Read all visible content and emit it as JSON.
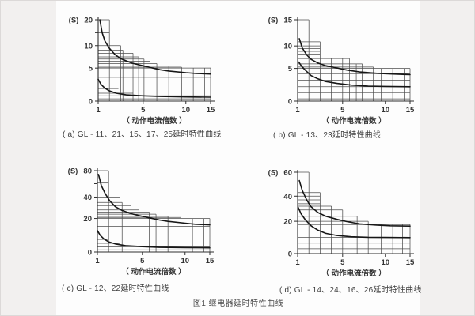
{
  "page": {
    "caption": "图1  继电器延时特性曲线",
    "colors": {
      "grid": "#4f4f4f",
      "axis": "#2f2f2f",
      "curve": "#161616",
      "text": "#333333",
      "panel": "#fdfdfd"
    }
  },
  "chart_data": [
    {
      "key": "a",
      "type": "line",
      "title": "( a) GL - 11、21、15、17、25延时特性曲线",
      "ylabel": "(S)",
      "xlabel": "（ 动作电流倍数 ）",
      "xlim": [
        1,
        15
      ],
      "ylim": [
        0,
        20
      ],
      "x_ticks": {
        "values": [
          1,
          5,
          10,
          15
        ],
        "labels": [
          "1",
          "5",
          "10",
          "15"
        ],
        "pos": [
          0,
          0.4,
          0.78,
          1
        ]
      },
      "y_ticks": {
        "values": [
          0,
          5,
          10,
          15,
          20
        ],
        "labels": [
          "0",
          "5",
          "10",
          "",
          "20"
        ],
        "pos": [
          0,
          0.406,
          0.682,
          0.841,
          1
        ]
      },
      "grid_hlines": [
        [
          20,
          2
        ],
        [
          15,
          2
        ],
        [
          10,
          3
        ],
        [
          9,
          3.2
        ],
        [
          8.3,
          4.1
        ],
        [
          7.5,
          4.6
        ],
        [
          7,
          5.1
        ],
        [
          6.5,
          5.8
        ],
        [
          6,
          6.6
        ],
        [
          5.5,
          8
        ],
        [
          5.2,
          9.5
        ],
        [
          5,
          15
        ],
        [
          3.6,
          15
        ],
        [
          1.9,
          2.8
        ],
        [
          1.2,
          4.1
        ],
        [
          0.8,
          15
        ],
        [
          0.35,
          15
        ]
      ],
      "grid_vlines": [
        [
          2,
          20
        ],
        [
          3,
          10
        ],
        [
          3.2,
          9
        ],
        [
          4.1,
          8.3
        ],
        [
          4.6,
          7.5
        ],
        [
          5.1,
          7
        ],
        [
          5.8,
          6.5
        ],
        [
          6.6,
          6
        ],
        [
          8,
          5.5
        ],
        [
          9.5,
          5.2
        ],
        [
          11.5,
          5
        ],
        [
          13.8,
          5
        ],
        [
          15,
          5
        ]
      ],
      "series": [
        {
          "name": "upper-limit-curve",
          "points": [
            [
              1.15,
              20
            ],
            [
              1.35,
              15
            ],
            [
              1.6,
              11.8
            ],
            [
              2,
              9.4
            ],
            [
              2.5,
              8
            ],
            [
              3,
              7.1
            ],
            [
              4,
              6.1
            ],
            [
              5,
              5.5
            ],
            [
              6,
              5.05
            ],
            [
              7,
              4.75
            ],
            [
              8,
              4.55
            ],
            [
              10,
              4.3
            ],
            [
              12,
              4.2
            ],
            [
              15,
              4.1
            ]
          ]
        },
        {
          "name": "lower-limit-curve",
          "points": [
            [
              1,
              3.3
            ],
            [
              1.25,
              2.55
            ],
            [
              1.6,
              1.95
            ],
            [
              2,
              1.55
            ],
            [
              2.6,
              1.2
            ],
            [
              3.5,
              0.95
            ],
            [
              5,
              0.8
            ],
            [
              7,
              0.7
            ],
            [
              10,
              0.63
            ],
            [
              15,
              0.6
            ]
          ]
        }
      ]
    },
    {
      "key": "b",
      "type": "line",
      "title": "( b) GL - 13、23延时特性曲线",
      "ylabel": "(S)",
      "xlabel": "（ 动作电流倍数 ）",
      "xlim": [
        1,
        15
      ],
      "ylim": [
        0,
        15
      ],
      "x_ticks": {
        "values": [
          1,
          5,
          10,
          15
        ],
        "labels": [
          "1",
          "5",
          "10",
          "15"
        ],
        "pos": [
          0,
          0.4,
          0.78,
          1
        ]
      },
      "y_ticks": {
        "values": [
          0,
          5,
          10,
          15
        ],
        "labels": [
          "0",
          "5",
          "10",
          "15"
        ],
        "pos": [
          0,
          0.402,
          0.678,
          1
        ]
      },
      "grid_hlines": [
        [
          15,
          2
        ],
        [
          10.8,
          3
        ],
        [
          10,
          3
        ],
        [
          9.4,
          3
        ],
        [
          8.8,
          3
        ],
        [
          8.2,
          3
        ],
        [
          7.2,
          5.8
        ],
        [
          6,
          7.3
        ],
        [
          5.3,
          8.6
        ],
        [
          5,
          15
        ],
        [
          4.2,
          15
        ],
        [
          3.2,
          15
        ],
        [
          2.2,
          15
        ],
        [
          1.3,
          15
        ],
        [
          0.35,
          15
        ]
      ],
      "grid_vlines": [
        [
          2,
          15
        ],
        [
          3,
          10.8
        ],
        [
          4,
          7.2
        ],
        [
          5,
          7.2
        ],
        [
          5.8,
          7.2
        ],
        [
          6.6,
          6
        ],
        [
          7.3,
          6
        ],
        [
          8.6,
          5.3
        ],
        [
          9.5,
          5
        ],
        [
          11.5,
          5
        ],
        [
          13.8,
          5
        ],
        [
          15,
          5
        ]
      ],
      "series": [
        {
          "name": "upper-limit-curve",
          "points": [
            [
              1.15,
              11.4
            ],
            [
              1.4,
              9.6
            ],
            [
              1.8,
              8
            ],
            [
              2.2,
              7
            ],
            [
              2.8,
              6.2
            ],
            [
              3.5,
              5.6
            ],
            [
              4.5,
              5.1
            ],
            [
              5.5,
              4.75
            ],
            [
              7,
              4.45
            ],
            [
              9,
              4.25
            ],
            [
              11,
              4.15
            ],
            [
              15,
              4.05
            ]
          ]
        },
        {
          "name": "lower-limit-curve",
          "points": [
            [
              1.1,
              6.4
            ],
            [
              1.35,
              5.5
            ],
            [
              1.7,
              4.7
            ],
            [
              2.2,
              3.9
            ],
            [
              2.8,
              3.4
            ],
            [
              3.5,
              3
            ],
            [
              4.5,
              2.7
            ],
            [
              6,
              2.45
            ],
            [
              8,
              2.3
            ],
            [
              10,
              2.25
            ],
            [
              15,
              2.2
            ]
          ]
        }
      ]
    },
    {
      "key": "c",
      "type": "line",
      "title": "( c) GL - 12、22延时特性曲线",
      "ylabel": "(S)",
      "xlabel": "（ 动作电流倍数 ）",
      "xlim": [
        1,
        15
      ],
      "ylim": [
        0,
        80
      ],
      "x_ticks": {
        "values": [
          1,
          5,
          10,
          15
        ],
        "labels": [
          "1",
          "5",
          "10",
          "15"
        ],
        "pos": [
          0,
          0.4,
          0.78,
          1
        ]
      },
      "y_ticks": {
        "values": [
          0,
          20,
          40,
          60,
          80
        ],
        "labels": [
          "0",
          "20",
          "40",
          "",
          "80"
        ],
        "pos": [
          0,
          0.412,
          0.675,
          0.84,
          1
        ]
      },
      "grid_hlines": [
        [
          80,
          2
        ],
        [
          61,
          2
        ],
        [
          40,
          3
        ],
        [
          35,
          3.2
        ],
        [
          32,
          4
        ],
        [
          28,
          4.7
        ],
        [
          26,
          5.8
        ],
        [
          24,
          6.6
        ],
        [
          22,
          8
        ],
        [
          21,
          9.5
        ],
        [
          20,
          15
        ],
        [
          15.3,
          15
        ],
        [
          7.5,
          2
        ],
        [
          5.2,
          3
        ],
        [
          3.1,
          15
        ],
        [
          1.3,
          15
        ]
      ],
      "grid_vlines": [
        [
          2,
          80
        ],
        [
          3,
          40
        ],
        [
          3.2,
          35
        ],
        [
          4,
          32
        ],
        [
          4.7,
          28
        ],
        [
          5.8,
          26
        ],
        [
          6.6,
          24
        ],
        [
          8,
          22
        ],
        [
          9.5,
          21
        ],
        [
          11.5,
          20
        ],
        [
          13.8,
          20
        ],
        [
          15,
          20
        ]
      ],
      "series": [
        {
          "name": "upper-limit-curve",
          "points": [
            [
              1.1,
              74
            ],
            [
              1.35,
              57
            ],
            [
              1.7,
              45
            ],
            [
              2.1,
              36.5
            ],
            [
              2.6,
              31
            ],
            [
              3.2,
              27.5
            ],
            [
              4,
              24.5
            ],
            [
              5,
              22
            ],
            [
              6,
              20.3
            ],
            [
              7,
              19.1
            ],
            [
              8,
              18.3
            ],
            [
              10,
              17.2
            ],
            [
              12,
              16.6
            ],
            [
              15,
              16.2
            ]
          ]
        },
        {
          "name": "lower-limit-curve",
          "points": [
            [
              1,
              12.8
            ],
            [
              1.25,
              10
            ],
            [
              1.6,
              7.7
            ],
            [
              2,
              6.1
            ],
            [
              2.6,
              4.8
            ],
            [
              3.5,
              3.8
            ],
            [
              5,
              3.2
            ],
            [
              7,
              2.8
            ],
            [
              10,
              2.6
            ],
            [
              15,
              2.5
            ]
          ]
        }
      ]
    },
    {
      "key": "d",
      "type": "line",
      "title": "( d) GL - 14、24、16、26延时特性曲线",
      "ylabel": "(S)",
      "xlabel": "（ 动作电流倍数 ）",
      "xlim": [
        1,
        15
      ],
      "ylim": [
        0,
        60
      ],
      "x_ticks": {
        "values": [
          1,
          5,
          10,
          15
        ],
        "labels": [
          "1",
          "5",
          "10",
          "15"
        ],
        "pos": [
          0,
          0.4,
          0.78,
          1
        ]
      },
      "y_ticks": {
        "values": [
          0,
          20,
          40,
          60
        ],
        "labels": [
          "0",
          "20",
          "40",
          "60"
        ],
        "pos": [
          0,
          0.397,
          0.706,
          1
        ]
      },
      "grid_hlines": [
        [
          60,
          2
        ],
        [
          43,
          3
        ],
        [
          40,
          3
        ],
        [
          37,
          3
        ],
        [
          34,
          3
        ],
        [
          32,
          4
        ],
        [
          29,
          5
        ],
        [
          24,
          6.7
        ],
        [
          20,
          8
        ],
        [
          18,
          15
        ],
        [
          10,
          15
        ],
        [
          6.5,
          15
        ],
        [
          3,
          15
        ]
      ],
      "grid_vlines": [
        [
          2,
          60
        ],
        [
          3,
          43
        ],
        [
          4,
          32
        ],
        [
          5,
          29
        ],
        [
          6.7,
          24
        ],
        [
          8,
          20
        ],
        [
          9.5,
          18
        ],
        [
          11.5,
          18
        ],
        [
          13.5,
          18
        ],
        [
          15,
          18
        ]
      ],
      "series": [
        {
          "name": "upper-limit-curve",
          "points": [
            [
              1.15,
              53
            ],
            [
              1.4,
              45
            ],
            [
              1.8,
              37
            ],
            [
              2.2,
              31.5
            ],
            [
              2.8,
              27
            ],
            [
              3.5,
              24
            ],
            [
              4.5,
              21.5
            ],
            [
              5.5,
              19.8
            ],
            [
              7,
              18.4
            ],
            [
              9,
              17.6
            ],
            [
              11,
              17.2
            ],
            [
              15,
              17
            ]
          ]
        },
        {
          "name": "lower-limit-curve",
          "points": [
            [
              1.05,
              31
            ],
            [
              1.3,
              26
            ],
            [
              1.7,
              21
            ],
            [
              2.2,
              17.2
            ],
            [
              2.8,
              14.5
            ],
            [
              3.5,
              12.5
            ],
            [
              4.5,
              11.2
            ],
            [
              6,
              10.4
            ],
            [
              8,
              10.1
            ],
            [
              10,
              10
            ],
            [
              15,
              9.9
            ]
          ]
        }
      ]
    }
  ]
}
